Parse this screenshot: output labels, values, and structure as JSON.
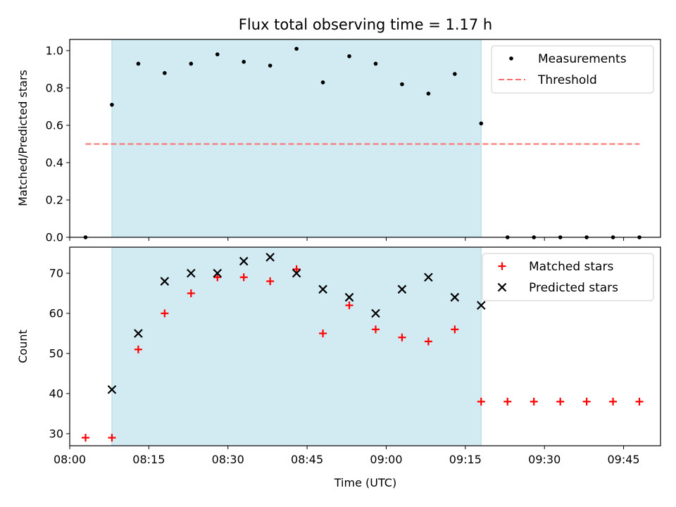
{
  "chart_data": {
    "title": "Flux total observing time = 1.17 h",
    "xlabel": "Time (UTC)",
    "x_range": [
      "08:00",
      "09:52"
    ],
    "x_ticks": [
      "08:00",
      "08:15",
      "08:30",
      "08:45",
      "09:00",
      "09:15",
      "09:30",
      "09:45"
    ],
    "highlight_span": [
      "08:08",
      "09:18"
    ],
    "colors": {
      "span": "#add8e6",
      "threshold": "#ff6e6e",
      "measurements": "#000000",
      "matched": "#ff0000",
      "predicted": "#000000"
    },
    "panels": [
      {
        "type": "scatter",
        "ylabel": "Matched/Predicted stars",
        "ylim": [
          0,
          1.06
        ],
        "y_ticks": [
          "0.0",
          "0.2",
          "0.4",
          "0.6",
          "0.8",
          "1.0"
        ],
        "legend": "top-right",
        "series": [
          {
            "name": "Measurements",
            "marker": "dot",
            "x": [
              "08:03",
              "08:08",
              "08:13",
              "08:18",
              "08:23",
              "08:28",
              "08:33",
              "08:38",
              "08:43",
              "08:48",
              "08:53",
              "08:58",
              "09:03",
              "09:08",
              "09:13",
              "09:18",
              "09:23",
              "09:28",
              "09:33",
              "09:38",
              "09:43",
              "09:48"
            ],
            "y": [
              0.0,
              0.71,
              0.93,
              0.88,
              0.93,
              0.98,
              0.94,
              0.92,
              1.01,
              0.83,
              0.97,
              0.93,
              0.82,
              0.77,
              0.875,
              0.61,
              0.0,
              0.0,
              0.0,
              0.0,
              0.0,
              0.0
            ]
          },
          {
            "name": "Threshold",
            "marker": "dashed-line",
            "x": [
              "08:03",
              "09:48"
            ],
            "y": [
              0.5,
              0.5
            ]
          }
        ]
      },
      {
        "type": "scatter",
        "ylabel": "Count",
        "ylim": [
          27,
          76.5
        ],
        "y_ticks": [
          "30",
          "40",
          "50",
          "60",
          "70"
        ],
        "legend": "top-right",
        "series": [
          {
            "name": "Matched stars",
            "marker": "plus",
            "x": [
              "08:03",
              "08:08",
              "08:13",
              "08:18",
              "08:23",
              "08:28",
              "08:33",
              "08:38",
              "08:43",
              "08:48",
              "08:53",
              "08:58",
              "09:03",
              "09:08",
              "09:13",
              "09:18",
              "09:23",
              "09:28",
              "09:33",
              "09:38",
              "09:43",
              "09:48"
            ],
            "y": [
              29,
              29,
              51,
              60,
              65,
              69,
              69,
              68,
              71,
              55,
              62,
              56,
              54,
              53,
              56,
              38,
              38,
              38,
              38,
              38,
              38,
              38
            ]
          },
          {
            "name": "Predicted stars",
            "marker": "x",
            "x": [
              "08:08",
              "08:13",
              "08:18",
              "08:23",
              "08:28",
              "08:33",
              "08:38",
              "08:43",
              "08:48",
              "08:53",
              "08:58",
              "09:03",
              "09:08",
              "09:13",
              "09:18"
            ],
            "y": [
              41,
              55,
              68,
              70,
              70,
              73,
              74,
              70,
              66,
              64,
              60,
              66,
              69,
              64,
              62
            ]
          }
        ]
      }
    ]
  }
}
